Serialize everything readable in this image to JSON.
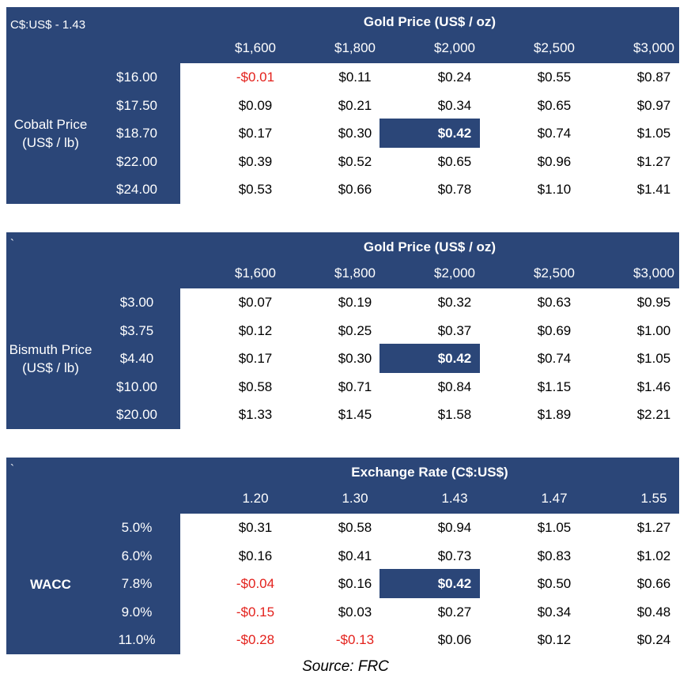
{
  "tables": [
    {
      "corner_label": "C$:US$ - 1.43",
      "title": "Gold Price (US$ / oz)",
      "columns": [
        "$1,600",
        "$1,800",
        "$2,000",
        "$2,500",
        "$3,000"
      ],
      "row_header": "Cobalt Price (US$ / lb)",
      "rows": [
        {
          "label": "$16.00",
          "values": [
            "-$0.01",
            "$0.11",
            "$0.24",
            "$0.55",
            "$0.87"
          ]
        },
        {
          "label": "$17.50",
          "values": [
            "$0.09",
            "$0.21",
            "$0.34",
            "$0.65",
            "$0.97"
          ]
        },
        {
          "label": "$18.70",
          "values": [
            "$0.17",
            "$0.30",
            "$0.42",
            "$0.74",
            "$1.05"
          ]
        },
        {
          "label": "$22.00",
          "values": [
            "$0.39",
            "$0.52",
            "$0.65",
            "$0.96",
            "$1.27"
          ]
        },
        {
          "label": "$24.00",
          "values": [
            "$0.53",
            "$0.66",
            "$0.78",
            "$1.10",
            "$1.41"
          ]
        }
      ]
    },
    {
      "corner_label": "`",
      "title": "Gold Price (US$ / oz)",
      "columns": [
        "$1,600",
        "$1,800",
        "$2,000",
        "$2,500",
        "$3,000"
      ],
      "row_header": "Bismuth Price (US$ / lb)",
      "rows": [
        {
          "label": "$3.00",
          "values": [
            "$0.07",
            "$0.19",
            "$0.32",
            "$0.63",
            "$0.95"
          ]
        },
        {
          "label": "$3.75",
          "values": [
            "$0.12",
            "$0.25",
            "$0.37",
            "$0.69",
            "$1.00"
          ]
        },
        {
          "label": "$4.40",
          "values": [
            "$0.17",
            "$0.30",
            "$0.42",
            "$0.74",
            "$1.05"
          ]
        },
        {
          "label": "$10.00",
          "values": [
            "$0.58",
            "$0.71",
            "$0.84",
            "$1.15",
            "$1.46"
          ]
        },
        {
          "label": "$20.00",
          "values": [
            "$1.33",
            "$1.45",
            "$1.58",
            "$1.89",
            "$2.21"
          ]
        }
      ]
    },
    {
      "corner_label": "`",
      "title": "Exchange Rate (C$:US$)",
      "columns": [
        "1.20",
        "1.30",
        "1.43",
        "1.47",
        "1.55"
      ],
      "row_header": "WACC",
      "rows": [
        {
          "label": "5.0%",
          "values": [
            "$0.31",
            "$0.58",
            "$0.94",
            "$1.05",
            "$1.27"
          ]
        },
        {
          "label": "6.0%",
          "values": [
            "$0.16",
            "$0.41",
            "$0.73",
            "$0.83",
            "$1.02"
          ]
        },
        {
          "label": "7.8%",
          "values": [
            "-$0.04",
            "$0.16",
            "$0.42",
            "$0.50",
            "$0.66"
          ]
        },
        {
          "label": "9.0%",
          "values": [
            "-$0.15",
            "$0.03",
            "$0.27",
            "$0.34",
            "$0.48"
          ]
        },
        {
          "label": "11.0%",
          "values": [
            "-$0.28",
            "-$0.13",
            "$0.06",
            "$0.12",
            "$0.24"
          ]
        }
      ]
    }
  ],
  "source": "Source: FRC",
  "colors": {
    "header_bg": "#2b4678",
    "negative": "#e3211c"
  }
}
